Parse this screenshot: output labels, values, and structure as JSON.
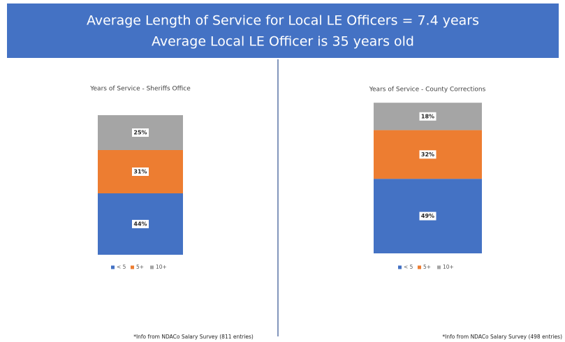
{
  "banner": [
    "Average Length of Service for Local LE Officers = 7.4 years",
    "Average Local LE Officer is 35 years old"
  ],
  "chart_data": [
    {
      "type": "stacked_bar",
      "title": "Years of Service - Sheriffs Office",
      "note": "*Info from NDACo Salary Survey (811 entries)",
      "ylim": [
        0,
        100
      ],
      "series": [
        {
          "name": "< 5",
          "color": "#4472c4",
          "values": [
            44
          ],
          "value_labels": [
            "44%"
          ]
        },
        {
          "name": "5+",
          "color": "#ed7d31",
          "values": [
            31
          ],
          "value_labels": [
            "31%"
          ]
        },
        {
          "name": "10+",
          "color": "#a5a5a5",
          "values": [
            25
          ],
          "value_labels": [
            "25%"
          ]
        }
      ]
    },
    {
      "type": "stacked_bar",
      "title": "Years of Service - County Corrections",
      "note": "*Info from NDACo Salary Survey (498 entries)",
      "ylim": [
        0,
        100
      ],
      "series": [
        {
          "name": "< 5",
          "color": "#4472c4",
          "values": [
            49
          ],
          "value_labels": [
            "49%"
          ]
        },
        {
          "name": "5+",
          "color": "#ed7d31",
          "values": [
            32
          ],
          "value_labels": [
            "32%"
          ]
        },
        {
          "name": "10+",
          "color": "#a5a5a5",
          "values": [
            18
          ],
          "value_labels": [
            "18%"
          ]
        }
      ]
    }
  ]
}
